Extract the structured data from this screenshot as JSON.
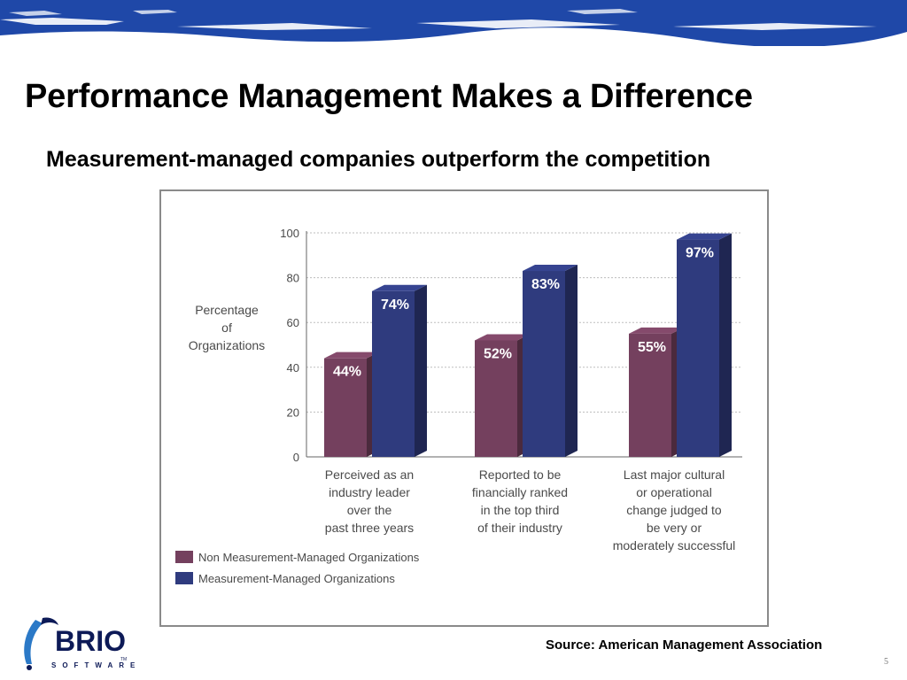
{
  "slide": {
    "title": "Performance Management Makes a Difference",
    "subtitle": "Measurement-managed companies outperform the competition",
    "source": "Source: American Management Association",
    "page_number": "5"
  },
  "logo": {
    "word": "BRIO",
    "sub": "SOFTWARE",
    "tm": "TM"
  },
  "colors": {
    "band": "#1f48a8",
    "non_measurement": "#74405e",
    "measurement": "#2f3b7e",
    "gridline": "#bdbdbd",
    "frame": "#8a8a8a",
    "axis_text": "#4a4a4a",
    "value_text": "#ffffff"
  },
  "chart_data": {
    "type": "bar",
    "y_title": [
      "Percentage",
      "of",
      "Organizations"
    ],
    "y_ticks": [
      "0",
      "20",
      "40",
      "60",
      "80",
      "100"
    ],
    "ylim": [
      0,
      100
    ],
    "grid": true,
    "legend_position": "bottom-left",
    "categories": [
      [
        "Perceived as an",
        "industry leader",
        "over the",
        "past three years"
      ],
      [
        "Reported to be",
        "financially ranked",
        "in the top third",
        "of their industry"
      ],
      [
        "Last major cultural",
        "or operational",
        "change judged to",
        "be very or",
        "moderately successful"
      ]
    ],
    "series": [
      {
        "name": "Non Measurement-Managed Organizations",
        "values": [
          44,
          52,
          55
        ],
        "labels": [
          "44%",
          "52%",
          "55%"
        ]
      },
      {
        "name": "Measurement-Managed Organizations",
        "values": [
          74,
          83,
          97
        ],
        "labels": [
          "74%",
          "83%",
          "97%"
        ]
      }
    ]
  }
}
